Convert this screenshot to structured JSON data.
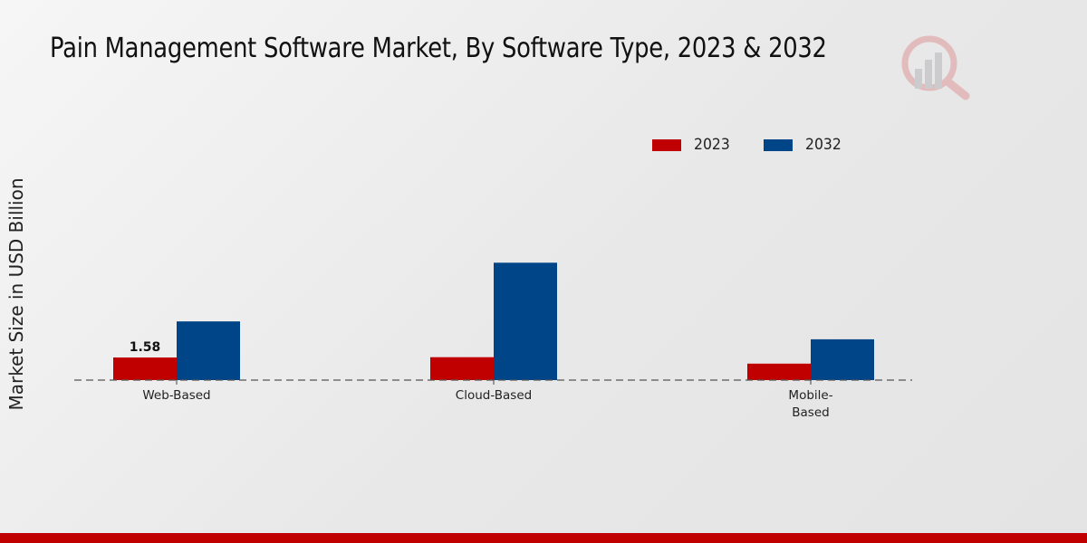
{
  "chart_data": {
    "type": "bar",
    "title": "Pain Management Software Market, By Software Type, 2023 & 2032",
    "xlabel": "",
    "ylabel": "Market Size in USD Billion",
    "categories": [
      [
        "Web-Based"
      ],
      [
        "Cloud-Based"
      ],
      [
        "Mobile-",
        "Based"
      ]
    ],
    "category_names": [
      "Web-Based",
      "Cloud-Based",
      "Mobile-Based"
    ],
    "series": [
      {
        "name": "2023",
        "color": "#c00000",
        "values": [
          1.58,
          1.6,
          1.15
        ]
      },
      {
        "name": "2032",
        "color": "#004587",
        "values": [
          4.1,
          8.2,
          2.85
        ]
      }
    ],
    "data_labels": [
      {
        "series": 0,
        "index": 0,
        "text": "1.58"
      }
    ],
    "ylim": [
      0,
      10
    ],
    "grid": false,
    "legend_position": "top-right",
    "baseline_style": "dashed"
  },
  "watermark": {
    "icon": "magnifier-bar-chart-icon"
  },
  "footer": {
    "accent_color": "#c00000"
  }
}
